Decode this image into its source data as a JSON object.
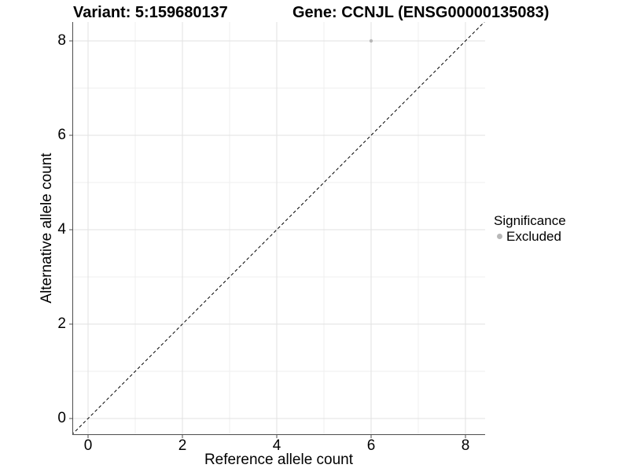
{
  "chart_data": {
    "type": "scatter",
    "titles": {
      "variant": "Variant: 5:159680137",
      "gene": "Gene: CCNJL (ENSG00000135083)"
    },
    "xlabel": "Reference allele count",
    "ylabel": "Alternative allele count",
    "xlim": [
      -0.35,
      8.42
    ],
    "ylim": [
      -0.35,
      8.42
    ],
    "x_ticks": [
      0,
      2,
      4,
      6,
      8
    ],
    "y_ticks": [
      0,
      2,
      4,
      6,
      8
    ],
    "x_minor_ticks": [
      1,
      3,
      5,
      7
    ],
    "y_minor_ticks": [
      1,
      3,
      5,
      7
    ],
    "grid": {
      "show": true,
      "major_color": "#e2e2e2",
      "minor_color": "#efefef"
    },
    "axis": {
      "line_color": "#4d4d4d",
      "tick_length": 4
    },
    "reference_line": {
      "equation": "y = x",
      "style": "dashed",
      "color": "#000000"
    },
    "series": [
      {
        "name": "Excluded",
        "color": "#b8b8b8",
        "point_radius": 2.2,
        "points": [
          {
            "x": 6,
            "y": 8
          }
        ]
      }
    ],
    "legend": {
      "title": "Significance",
      "position": "right",
      "entries": [
        {
          "label": "Excluded",
          "color": "#b8b8b8"
        }
      ]
    }
  }
}
